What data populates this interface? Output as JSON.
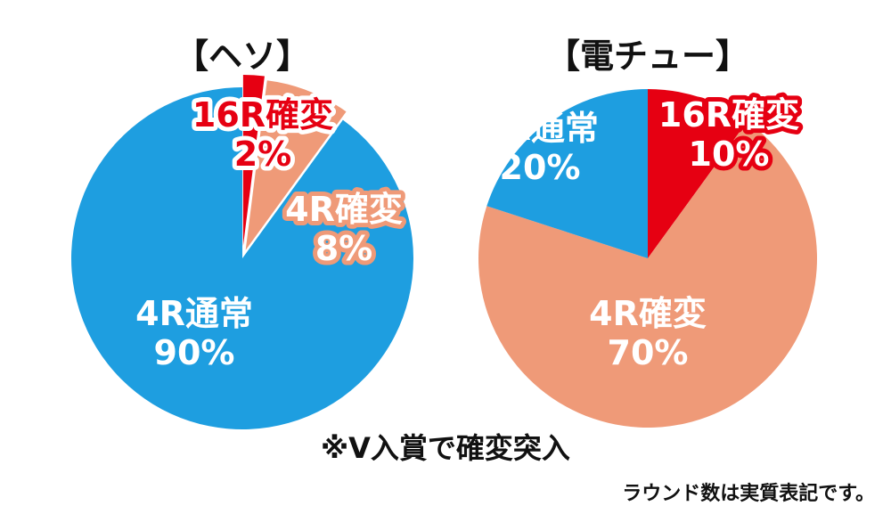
{
  "chart_data": [
    {
      "type": "pie",
      "title": "【ヘソ】",
      "slices": [
        {
          "label": "16R確変",
          "value": 2,
          "value_label": "2%",
          "color": "#e60012"
        },
        {
          "label": "4R確変",
          "value": 8,
          "value_label": "8%",
          "color": "#ef9a78"
        },
        {
          "label": "4R通常",
          "value": 90,
          "value_label": "90%",
          "color": "#1e9ee0"
        }
      ]
    },
    {
      "type": "pie",
      "title": "【電チュー】",
      "slices": [
        {
          "label": "16R確変",
          "value": 10,
          "value_label": "10%",
          "color": "#e60012"
        },
        {
          "label": "4R確変",
          "value": 70,
          "value_label": "70%",
          "color": "#ef9a78"
        },
        {
          "label": "4R通常",
          "value": 20,
          "value_label": "20%",
          "color": "#1e9ee0"
        }
      ]
    }
  ],
  "note": "※V入賞で確変突入",
  "footnote": "ラウンド数は実質表記です。"
}
